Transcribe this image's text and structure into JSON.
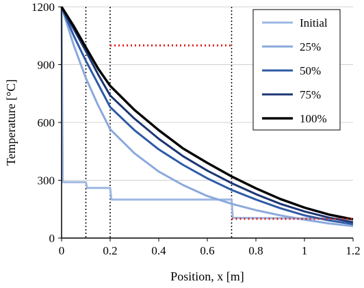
{
  "chart_data": {
    "type": "line",
    "title": "",
    "xlabel": "Position, x [m]",
    "ylabel": "Temperature [°C]",
    "xlim": [
      0,
      1.2
    ],
    "ylim": [
      0,
      1200
    ],
    "x_ticks": [
      0,
      0.2,
      0.4,
      0.6,
      0.8,
      1,
      1.2
    ],
    "x_tick_labels": [
      "0",
      "0.2",
      "0.4",
      "0.6",
      "0.8",
      "1",
      "1.2"
    ],
    "y_ticks": [
      0,
      300,
      600,
      900,
      1200
    ],
    "y_tick_labels": [
      "0",
      "300",
      "600",
      "900",
      "1200"
    ],
    "grid": "horizontal",
    "legend_position": "top-right",
    "vertical_reference_lines": [
      0.1,
      0.2,
      0.7
    ],
    "reference_segments": [
      {
        "x": [
          0.2,
          0.7
        ],
        "y": [
          1000,
          1000
        ],
        "color": "#e0201b",
        "style": "dotted"
      },
      {
        "x": [
          0.7,
          1.2
        ],
        "y": [
          100,
          100
        ],
        "color": "#e0201b",
        "style": "dotted"
      }
    ],
    "series": [
      {
        "name": "Initial",
        "color": "#9db7e2",
        "width": 3,
        "x": [
          0,
          0.005,
          0.1,
          0.105,
          0.2,
          0.205,
          0.7,
          0.705,
          1.2
        ],
        "y": [
          1200,
          290,
          290,
          260,
          260,
          200,
          200,
          105,
          100
        ]
      },
      {
        "name": "25%",
        "color": "#8aa9dc",
        "width": 3,
        "x": [
          0,
          0.05,
          0.1,
          0.15,
          0.2,
          0.3,
          0.4,
          0.5,
          0.6,
          0.7,
          0.8,
          0.9,
          1.0,
          1.1,
          1.2
        ],
        "y": [
          1200,
          1000,
          830,
          690,
          565,
          440,
          345,
          275,
          218,
          178,
          145,
          118,
          96,
          76,
          62
        ]
      },
      {
        "name": "50%",
        "color": "#2e5aa6",
        "width": 3,
        "x": [
          0,
          0.05,
          0.1,
          0.15,
          0.2,
          0.3,
          0.4,
          0.5,
          0.6,
          0.7,
          0.8,
          0.9,
          1.0,
          1.1,
          1.2
        ],
        "y": [
          1200,
          1050,
          920,
          800,
          680,
          560,
          460,
          380,
          310,
          250,
          200,
          155,
          118,
          92,
          72
        ]
      },
      {
        "name": "75%",
        "color": "#1c3573",
        "width": 3,
        "x": [
          0,
          0.05,
          0.1,
          0.15,
          0.2,
          0.3,
          0.4,
          0.5,
          0.6,
          0.7,
          0.8,
          0.9,
          1.0,
          1.1,
          1.2
        ],
        "y": [
          1200,
          1085,
          970,
          850,
          740,
          620,
          515,
          425,
          350,
          285,
          228,
          178,
          138,
          106,
          82
        ]
      },
      {
        "name": "100%",
        "color": "#000000",
        "width": 3.5,
        "x": [
          0,
          0.05,
          0.1,
          0.15,
          0.2,
          0.3,
          0.4,
          0.5,
          0.6,
          0.7,
          0.8,
          0.9,
          1.0,
          1.1,
          1.2
        ],
        "y": [
          1200,
          1100,
          990,
          880,
          790,
          665,
          560,
          465,
          390,
          320,
          258,
          203,
          158,
          122,
          97
        ]
      }
    ]
  }
}
